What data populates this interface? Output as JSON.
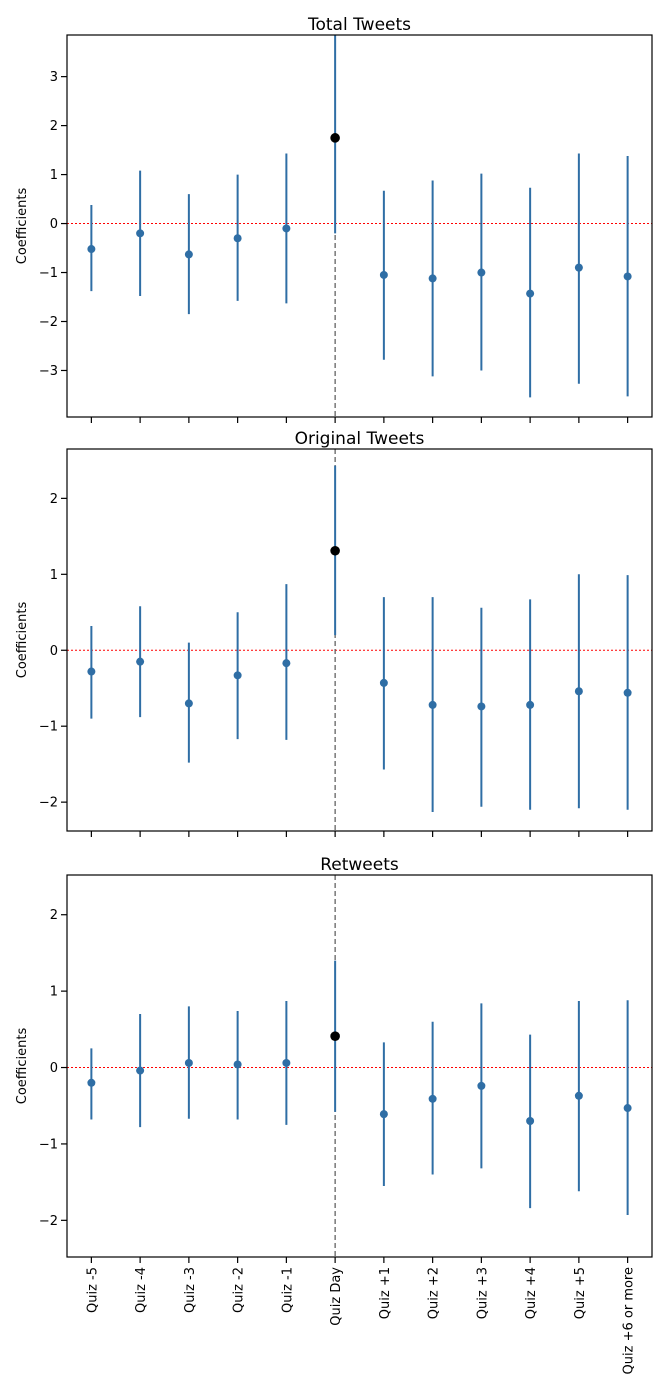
{
  "chart_data": {
    "type": "scatter",
    "subtype": "errorbar",
    "categories": [
      "Quiz -5",
      "Quiz -4",
      "Quiz -3",
      "Quiz -2",
      "Quiz -1",
      "Quiz Day",
      "Quiz +1",
      "Quiz +2",
      "Quiz +3",
      "Quiz +4",
      "Quiz +5",
      "Quiz +6 or more"
    ],
    "highlight_category": "Quiz Day",
    "reference_line_y": 0,
    "grid": false,
    "colors": {
      "series": "#2f6ea5",
      "highlight": "#000000",
      "zero_line": "#ff0000",
      "vline": "#555555"
    },
    "panels": [
      {
        "title": "Total Tweets",
        "ylabel": "Coefficients",
        "ylim": [
          -3.95,
          3.85
        ],
        "yticks": [
          -3,
          -2,
          -1,
          0,
          1,
          2,
          3
        ],
        "ytick_labels": [
          "−3",
          "−2",
          "−1",
          "0",
          "1",
          "2",
          "3"
        ],
        "values": [
          -0.52,
          -0.2,
          -0.63,
          -0.3,
          -0.1,
          1.75,
          -1.05,
          -1.12,
          -1.0,
          -1.43,
          -0.9,
          -1.08
        ],
        "lower": [
          -1.38,
          -1.48,
          -1.85,
          -1.58,
          -1.63,
          -0.2,
          -2.78,
          -3.12,
          -3.0,
          -3.55,
          -3.27,
          -3.53
        ],
        "upper": [
          0.38,
          1.08,
          0.6,
          1.0,
          1.43,
          3.85,
          0.67,
          0.88,
          1.02,
          0.73,
          1.43,
          1.38
        ]
      },
      {
        "title": "Original Tweets",
        "ylabel": "Coefficients",
        "ylim": [
          -2.38,
          2.65
        ],
        "yticks": [
          -2,
          -1,
          0,
          1,
          2
        ],
        "ytick_labels": [
          "−2",
          "−1",
          "0",
          "1",
          "2"
        ],
        "values": [
          -0.28,
          -0.15,
          -0.7,
          -0.33,
          -0.17,
          1.31,
          -0.43,
          -0.72,
          -0.74,
          -0.72,
          -0.54,
          -0.56
        ],
        "lower": [
          -0.9,
          -0.88,
          -1.48,
          -1.17,
          -1.18,
          0.2,
          -1.57,
          -2.13,
          -2.06,
          -2.1,
          -2.08,
          -2.1
        ],
        "upper": [
          0.32,
          0.58,
          0.1,
          0.5,
          0.87,
          2.43,
          0.7,
          0.7,
          0.56,
          0.67,
          1.0,
          0.99
        ]
      },
      {
        "title": "Retweets",
        "ylabel": "Coefficients",
        "ylim": [
          -2.48,
          2.52
        ],
        "yticks": [
          -2,
          -1,
          0,
          1,
          2
        ],
        "ytick_labels": [
          "−2",
          "−1",
          "0",
          "1",
          "2"
        ],
        "values": [
          -0.2,
          -0.04,
          0.06,
          0.04,
          0.06,
          0.41,
          -0.61,
          -0.41,
          -0.24,
          -0.7,
          -0.37,
          -0.53
        ],
        "lower": [
          -0.68,
          -0.78,
          -0.67,
          -0.68,
          -0.75,
          -0.58,
          -1.55,
          -1.4,
          -1.32,
          -1.84,
          -1.62,
          -1.93
        ],
        "upper": [
          0.25,
          0.7,
          0.8,
          0.74,
          0.87,
          1.4,
          0.33,
          0.6,
          0.84,
          0.43,
          0.87,
          0.88
        ]
      }
    ]
  }
}
